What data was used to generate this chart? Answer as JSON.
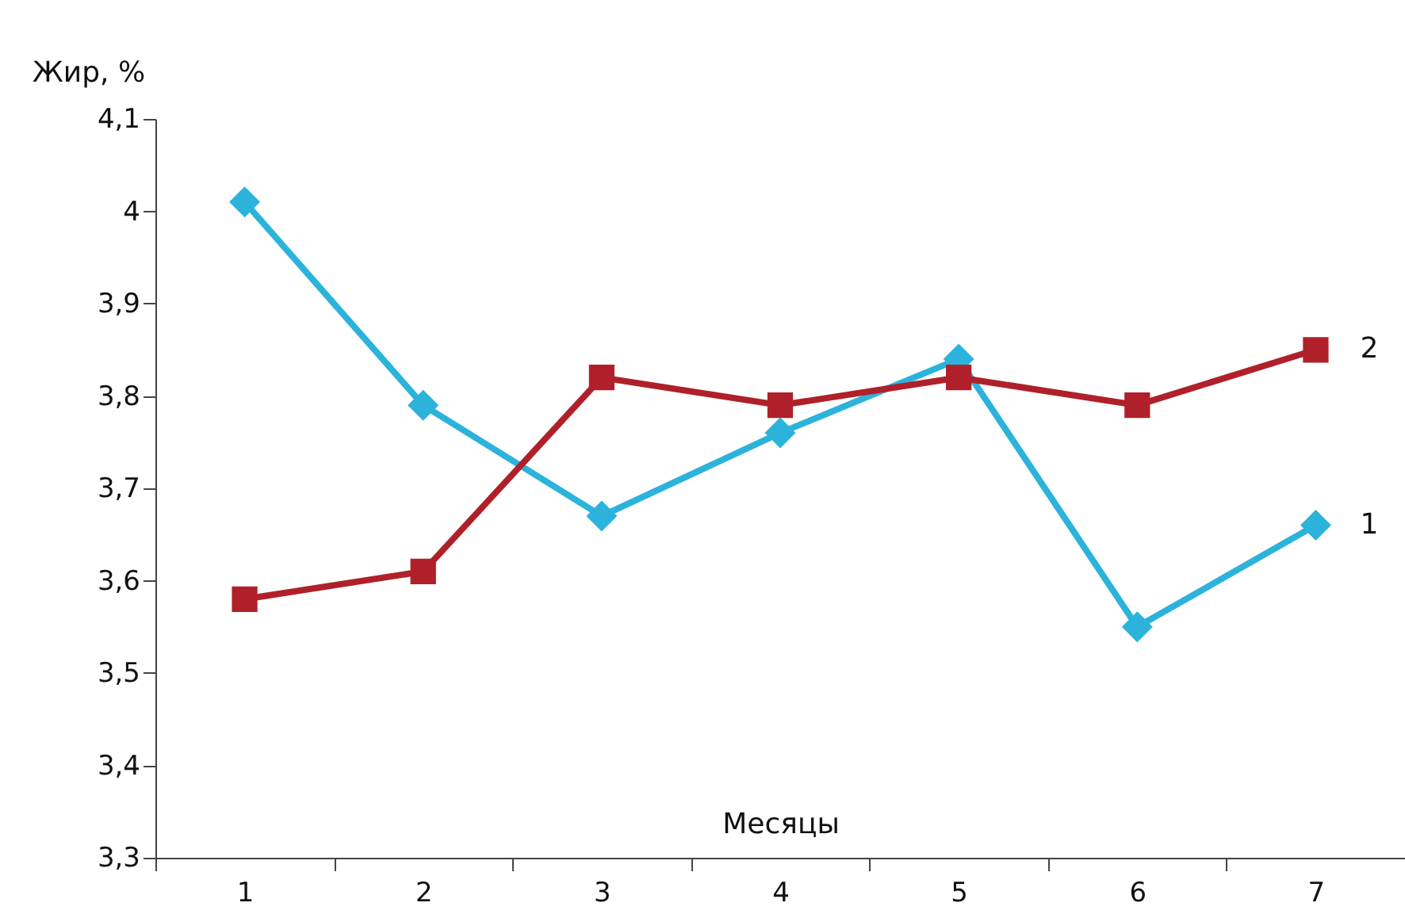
{
  "chart_data": {
    "type": "line",
    "ylabel": "Жир, %",
    "xlabel": "Месяцы",
    "categories": [
      "1",
      "2",
      "3",
      "4",
      "5",
      "6",
      "7"
    ],
    "series": [
      {
        "name": "1",
        "color": "#2cb3dc",
        "marker": "diamond",
        "values": [
          4.01,
          3.79,
          3.67,
          3.76,
          3.84,
          3.55,
          3.66
        ]
      },
      {
        "name": "2",
        "color": "#b0202a",
        "marker": "square",
        "values": [
          3.58,
          3.61,
          3.82,
          3.79,
          3.82,
          3.79,
          3.85
        ]
      }
    ],
    "ylim": [
      3.3,
      4.1
    ],
    "yticks": [
      {
        "value": 3.3,
        "label": "3,3"
      },
      {
        "value": 3.4,
        "label": "3,4"
      },
      {
        "value": 3.5,
        "label": "3,5"
      },
      {
        "value": 3.6,
        "label": "3,6"
      },
      {
        "value": 3.7,
        "label": "3,7"
      },
      {
        "value": 3.8,
        "label": "3,8"
      },
      {
        "value": 3.9,
        "label": "3,9"
      },
      {
        "value": 4,
        "label": "4"
      },
      {
        "value": 4.1,
        "label": "4,1"
      }
    ],
    "grid": false
  }
}
